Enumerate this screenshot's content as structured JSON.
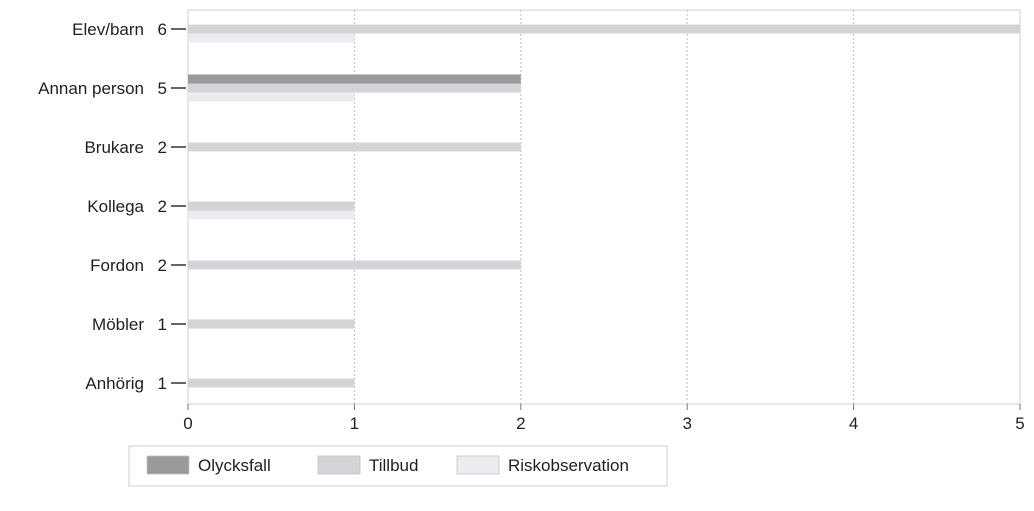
{
  "chart_data": {
    "type": "bar",
    "orientation": "horizontal",
    "categories": [
      "Elev/barn",
      "Annan person",
      "Brukare",
      "Kollega",
      "Fordon",
      "Möbler",
      "Anhörig"
    ],
    "totals": [
      6,
      5,
      2,
      2,
      2,
      1,
      1
    ],
    "series": [
      {
        "name": "Olycksfall",
        "values": [
          0,
          2,
          0,
          0,
          0,
          0,
          0
        ],
        "color": "#9a9a9a"
      },
      {
        "name": "Tillbud",
        "values": [
          5,
          2,
          2,
          1,
          2,
          1,
          1
        ],
        "color": "#d4d4d8"
      },
      {
        "name": "Riskobservation",
        "values": [
          1,
          1,
          0,
          1,
          0,
          0,
          0
        ],
        "color": "#ececf0"
      }
    ],
    "x_ticks": [
      "0",
      "1",
      "2",
      "3",
      "4",
      "5"
    ],
    "xlim": [
      0,
      5
    ],
    "grid": true,
    "legend_position": "bottom-left"
  }
}
